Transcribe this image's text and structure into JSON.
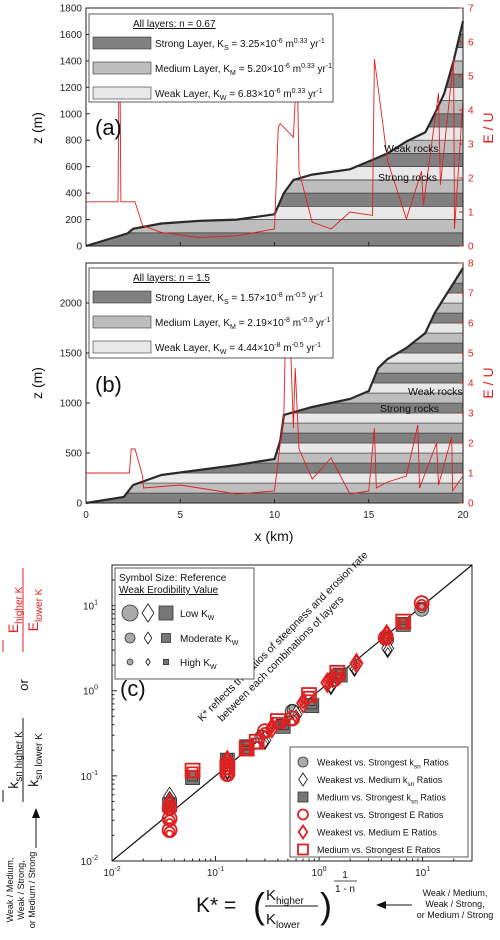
{
  "chart_data": [
    {
      "panel": "(a)",
      "type": "line",
      "ylabel": "z (m)",
      "ylabel_right": "E / U",
      "ylim": [
        0,
        1800
      ],
      "ylim_right": [
        0,
        7
      ],
      "xlim": [
        0,
        20
      ],
      "yticks": [
        "0",
        "200",
        "400",
        "600",
        "800",
        "1000",
        "1200",
        "1400",
        "1600",
        "1800"
      ],
      "yticks_right": [
        "0",
        "1",
        "2",
        "3",
        "4",
        "5",
        "6",
        "7"
      ],
      "legend_title": "All layers: n = 0.67",
      "legend": [
        {
          "name": "Strong Layer, K",
          "sub": "S",
          "rest": " = 3.25×10",
          "exp": "-6",
          "unit": " m",
          "uexp": "0.33",
          "tail": " yr",
          "texp": "-1",
          "color": "#808080"
        },
        {
          "name": "Medium Layer, K",
          "sub": "M",
          "rest": " = 5.20×10",
          "exp": "-6",
          "unit": " m",
          "uexp": "0.33",
          "tail": " yr",
          "texp": "-1",
          "color": "#bdbdbd"
        },
        {
          "name": "Weak Layer, K",
          "sub": "W",
          "rest": " = 6.83×10",
          "exp": "-6",
          "unit": " m",
          "uexp": "0.33",
          "tail": " yr",
          "texp": "-1",
          "color": "#e8e8e8"
        }
      ],
      "annotations": [
        "Weak rocks",
        "Strong rocks"
      ],
      "layer_boundaries": [
        0,
        100,
        200,
        300,
        400,
        500,
        600,
        700,
        800,
        900,
        1000,
        1100,
        1200,
        1300,
        1400,
        1500,
        1600,
        1700
      ],
      "layer_pattern": [
        "strong",
        "medium",
        "weak"
      ],
      "profile_x": [
        0,
        2.2,
        2.5,
        4,
        6,
        8,
        10,
        10.5,
        11,
        12,
        14,
        15,
        16,
        17,
        18,
        18.5,
        19,
        19.5,
        20
      ],
      "profile_z": [
        0,
        95,
        130,
        170,
        190,
        200,
        240,
        400,
        500,
        540,
        580,
        640,
        700,
        790,
        860,
        1000,
        1150,
        1400,
        1700
      ],
      "eu_x": [
        0,
        1.7,
        1.75,
        1.8,
        1.85,
        2.6,
        3,
        4,
        6,
        8,
        10,
        10.2,
        10.3,
        11,
        11.2,
        11.3,
        12,
        13,
        14,
        15.2,
        15.3,
        16,
        17,
        17.8,
        17.9,
        18.7,
        18.8,
        19.5,
        19.55,
        20
      ],
      "eu": [
        1.3,
        1.3,
        5.3,
        5.3,
        1.3,
        1.3,
        0.6,
        0.4,
        0.25,
        0.3,
        0.5,
        3.5,
        3.6,
        3.2,
        5.5,
        2.2,
        0.7,
        0.5,
        1.0,
        0.9,
        5.5,
        2.5,
        0.8,
        2.2,
        1.2,
        4.5,
        1.8,
        5.5,
        0.5,
        4.3
      ]
    },
    {
      "panel": "(b)",
      "type": "line",
      "ylabel": "z (m)",
      "ylabel_right": "E / U",
      "xlabel": "x (km)",
      "xlim": [
        0,
        20
      ],
      "xticks": [
        "0",
        "5",
        "10",
        "15",
        "20"
      ],
      "ylim": [
        0,
        2400
      ],
      "ylim_right": [
        0,
        8
      ],
      "yticks": [
        "0",
        "500",
        "1000",
        "1500",
        "2000"
      ],
      "yticks_right": [
        "0",
        "1",
        "2",
        "3",
        "4",
        "5",
        "6",
        "7",
        "8"
      ],
      "legend_title": "All layers: n = 1.5",
      "legend": [
        {
          "name": "Strong Layer, K",
          "sub": "S",
          "rest": " = 1.57×10",
          "exp": "-8",
          "unit": " m",
          "uexp": "-0.5",
          "tail": " yr",
          "texp": "-1",
          "color": "#808080"
        },
        {
          "name": "Medium Layer, K",
          "sub": "M",
          "rest": " = 2.19×10",
          "exp": "-8",
          "unit": " m",
          "uexp": "-0.5",
          "tail": " yr",
          "texp": "-1",
          "color": "#bdbdbd"
        },
        {
          "name": "Weak Layer, K",
          "sub": "W",
          "rest": " = 4.44×10",
          "exp": "-8",
          "unit": " m",
          "uexp": "-0.5",
          "tail": " yr",
          "texp": "-1",
          "color": "#e8e8e8"
        }
      ],
      "annotations": [
        "Weak rocks",
        "Strong rocks"
      ],
      "profile_x": [
        0,
        2,
        2.5,
        4,
        6,
        8,
        10,
        10.3,
        10.5,
        12,
        14,
        15,
        15.5,
        16,
        17,
        18,
        18.5,
        19,
        19.5,
        20
      ],
      "profile_z": [
        0,
        60,
        180,
        280,
        330,
        380,
        440,
        620,
        880,
        960,
        1040,
        1120,
        1350,
        1440,
        1550,
        1700,
        1900,
        2050,
        2200,
        2350
      ],
      "eu_x": [
        0,
        2.3,
        2.4,
        2.6,
        3,
        3.05,
        5,
        8,
        10,
        10.5,
        10.6,
        10.8,
        11,
        11.1,
        11.3,
        12,
        13,
        14,
        15,
        15.3,
        15.4,
        16,
        17,
        17.6,
        17.7,
        18.6,
        18.7,
        19.4,
        19.45,
        20
      ],
      "eu": [
        1,
        1,
        1.8,
        1.8,
        0.9,
        0.5,
        0.6,
        0.3,
        0.4,
        3,
        6.1,
        6.2,
        2.5,
        4.5,
        1.8,
        0.8,
        1.5,
        0.3,
        0.4,
        2.5,
        0.5,
        0.7,
        0.9,
        2.6,
        0.5,
        2,
        0.6,
        2.2,
        0.4,
        0.9
      ]
    },
    {
      "panel": "(c)",
      "type": "scatter",
      "xlabel_formula": {
        "lhs": "K* =",
        "num": "K",
        "num_sub": "higher",
        "den": "K",
        "den_sub": "lower",
        "exp_num": "1",
        "exp_den": "1 - n"
      },
      "xaxis_note": [
        "Weak / Medium,",
        "Weak / Strong,",
        "or Medium / Strong"
      ],
      "yaxis_note": [
        "Weak / Medium,",
        "Weak / Strong,",
        "or Medium / Strong"
      ],
      "ylabel_top": {
        "num": "E",
        "num_sub": "higher K",
        "den": "E",
        "den_sub": "lower K"
      },
      "ylabel_or": "or",
      "ylabel_bottom": {
        "num": "k",
        "num_sub": "sn higher K",
        "den": "k",
        "den_sub": "sn lower K"
      },
      "xscale": "log",
      "yscale": "log",
      "xlim": [
        0.01,
        30
      ],
      "ylim": [
        0.01,
        30
      ],
      "xticks": [
        {
          "b": "10",
          "e": "-2",
          "v": 0.01
        },
        {
          "b": "10",
          "e": "-1",
          "v": 0.1
        },
        {
          "b": "10",
          "e": "0",
          "v": 1
        },
        {
          "b": "10",
          "e": "1",
          "v": 10
        }
      ],
      "yticks": [
        {
          "b": "10",
          "e": "-2",
          "v": 0.01
        },
        {
          "b": "10",
          "e": "-1",
          "v": 0.1
        },
        {
          "b": "10",
          "e": "0",
          "v": 1
        },
        {
          "b": "10",
          "e": "1",
          "v": 10
        }
      ],
      "line_annotation": [
        "K* reflects the ratios of steepness and erosion rate",
        "between each combinations of layers"
      ],
      "size_legend": {
        "title": "Symbol Size: Reference",
        "subtitle": "Weak Erodibility Value",
        "rows": [
          {
            "label": "Low K",
            "sub": "W"
          },
          {
            "label": "Moderate K",
            "sub": "W"
          },
          {
            "label": "High K",
            "sub": "W"
          }
        ]
      },
      "series": [
        {
          "name": "Weakest vs. Strongest k",
          "sub": "sn",
          "rest": " Ratios",
          "marker": "circle",
          "fill": "#aaaaaa",
          "stroke": "#333333",
          "points": [
            [
              0.036,
              0.045
            ],
            [
              0.13,
              0.14
            ],
            [
              0.28,
              0.3
            ],
            [
              0.55,
              0.6
            ],
            [
              1.4,
              1.5
            ],
            [
              4.5,
              4.2
            ],
            [
              9.8,
              9.5
            ]
          ]
        },
        {
          "name": "Weakest vs. Medium k",
          "sub": "sn",
          "rest": " Ratios",
          "marker": "diamond",
          "fill": "#ffffff",
          "stroke": "#111111",
          "points": [
            [
              0.036,
              0.055
            ],
            [
              0.13,
              0.11
            ],
            [
              0.3,
              0.25
            ],
            [
              0.6,
              0.5
            ],
            [
              1.3,
              1.1
            ],
            [
              2.2,
              1.8
            ],
            [
              4.6,
              3.0
            ]
          ]
        },
        {
          "name": "Medium vs. Strongest k",
          "sub": "sn",
          "rest": " Ratios",
          "marker": "square",
          "fill": "#777777",
          "stroke": "#333333",
          "points": [
            [
              0.036,
              0.048
            ],
            [
              0.06,
              0.1
            ],
            [
              0.13,
              0.16
            ],
            [
              0.2,
              0.23
            ],
            [
              0.45,
              0.4
            ],
            [
              0.85,
              0.7
            ],
            [
              1.6,
              1.6
            ],
            [
              6.5,
              6.3
            ]
          ]
        },
        {
          "name": "Weakest vs. Strongest E",
          "sub": "",
          "rest": " Ratios",
          "marker": "circle",
          "fill": "none",
          "stroke": "#e02020",
          "points": [
            [
              0.036,
              0.04
            ],
            [
              0.036,
              0.03
            ],
            [
              0.036,
              0.022
            ],
            [
              0.13,
              0.13
            ],
            [
              0.13,
              0.1
            ],
            [
              0.3,
              0.32
            ],
            [
              0.55,
              0.45
            ],
            [
              1.4,
              1.3
            ],
            [
              4.4,
              4.0
            ],
            [
              9.8,
              10.2
            ]
          ]
        },
        {
          "name": "Weakest vs. Medium E",
          "sub": "",
          "rest": " Ratios",
          "marker": "diamond",
          "fill": "none",
          "stroke": "#e02020",
          "points": [
            [
              0.036,
              0.05
            ],
            [
              0.13,
              0.16
            ],
            [
              0.35,
              0.38
            ],
            [
              0.7,
              0.75
            ],
            [
              1.2,
              1.3
            ],
            [
              2.3,
              2.2
            ],
            [
              4.5,
              4.8
            ]
          ]
        },
        {
          "name": "Medium vs. Strongest E",
          "sub": "",
          "rest": " Ratios",
          "marker": "square",
          "fill": "none",
          "stroke": "#e02020",
          "points": [
            [
              0.06,
              0.11
            ],
            [
              0.13,
              0.12
            ],
            [
              0.2,
              0.2
            ],
            [
              0.25,
              0.24
            ],
            [
              0.4,
              0.42
            ],
            [
              0.8,
              0.85
            ],
            [
              1.5,
              1.55
            ],
            [
              6.5,
              6.2
            ]
          ]
        }
      ],
      "one_to_one_line": true
    }
  ]
}
